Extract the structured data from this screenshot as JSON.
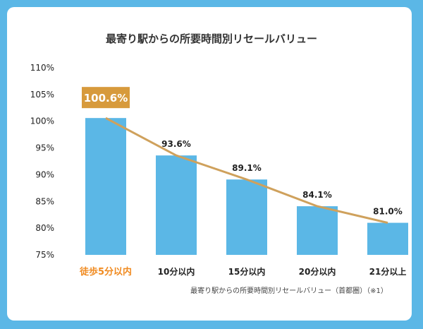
{
  "colors": {
    "background": "#5bb7e6",
    "bar": "#5bb7e6",
    "highlight": "#d79a3c",
    "highlight_text": "#f08a1f",
    "trend_line": "#cfa15c"
  },
  "chart_data": {
    "type": "bar",
    "title": "最寄り駅からの所要時間別リセールバリュー",
    "categories": [
      "徒歩5分以内",
      "10分以内",
      "15分以内",
      "20分以内",
      "21分以上"
    ],
    "values": [
      100.6,
      93.6,
      89.1,
      84.1,
      81.0
    ],
    "value_labels": [
      "100.6%",
      "93.6%",
      "89.1%",
      "84.1%",
      "81.0%"
    ],
    "highlight_index": 0,
    "ylim": [
      75,
      110
    ],
    "yticks": [
      "75%",
      "80%",
      "85%",
      "90%",
      "95%",
      "100%",
      "105%",
      "110%"
    ],
    "ytick_values": [
      75,
      80,
      85,
      90,
      95,
      100,
      105,
      110
    ],
    "trend_line": true,
    "grid": false,
    "source_note": "最寄り駅からの所要時間別リセールバリュー（首都圏）（※1）"
  }
}
